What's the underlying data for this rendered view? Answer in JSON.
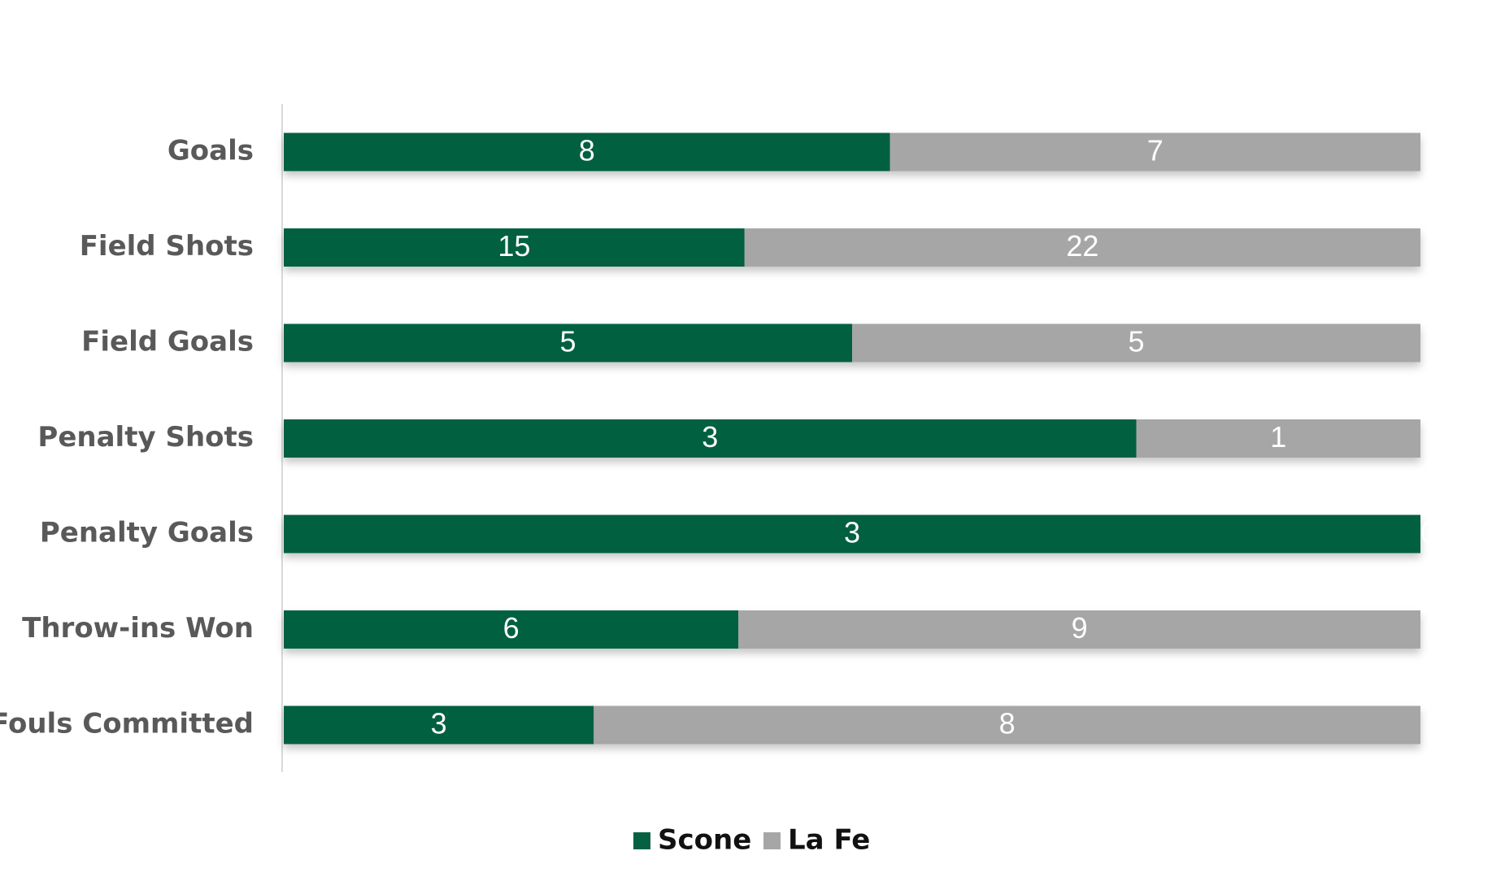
{
  "chart_data": {
    "type": "bar",
    "orientation": "horizontal",
    "stacking": "percent",
    "categories": [
      "Goals",
      "Field Shots",
      "Field Goals",
      "Penalty Shots",
      "Penalty Goals",
      "Throw-ins Won",
      "Fouls Committed"
    ],
    "series": [
      {
        "name": "Scone",
        "values": [
          8,
          15,
          5,
          3,
          3,
          6,
          3
        ],
        "color": "#056141"
      },
      {
        "name": "La Fe",
        "values": [
          7,
          22,
          5,
          1,
          0,
          9,
          8
        ],
        "color": "#a6a6a6"
      }
    ],
    "title": "",
    "xlabel": "",
    "ylabel": "",
    "grid": false,
    "legend_position": "bottom"
  }
}
